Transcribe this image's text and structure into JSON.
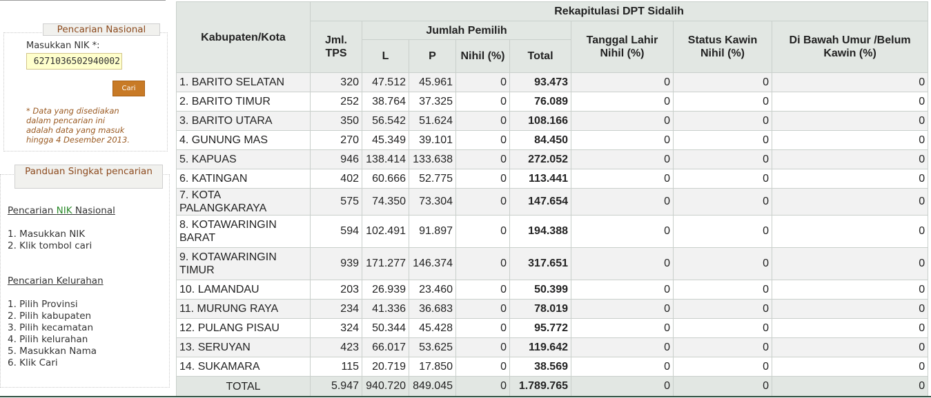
{
  "sidebar": {
    "search": {
      "legend": "Pencarian Nasional",
      "nik_label": "Masukkan NIK *:",
      "nik_value": "6271036502940002",
      "button": "Cari",
      "note": "* Data yang disediakan dalam pencarian ini adalah data yang masuk hingga 4 Desember 2013."
    },
    "guide": {
      "legend": "Panduan Singkat pencarian",
      "nik_heading": {
        "before": "Pencarian ",
        "highlight": "NIK",
        "after": " Nasional"
      },
      "nik_steps": [
        "1. Masukkan NIK",
        "2. Klik tombol cari"
      ],
      "kel_heading": "Pencarian Kelurahan",
      "kel_steps": [
        "1. Pilih Provinsi",
        "2. Pilih kabupaten",
        "3. Pilih kecamatan",
        "4. Pilih kelurahan",
        "5. Masukkan Nama",
        "6. Klik Cari"
      ]
    }
  },
  "table": {
    "title": "Rekapitulasi DPT Sidalih",
    "headers": {
      "kabupaten": "Kabupaten/Kota",
      "tps": "Jml. TPS",
      "jumlah_pemilih": "Jumlah Pemilih",
      "l": "L",
      "p": "P",
      "nihil": "Nihil (%)",
      "total": "Total",
      "tgl_lahir": "Tanggal Lahir Nihil (%)",
      "status_kawin": "Status Kawin Nihil (%)",
      "dibawah_umur": "Di Bawah Umur /Belum Kawin (%)"
    },
    "rows": [
      {
        "name": "1. BARITO SELATAN",
        "tps": "320",
        "l": "47.512",
        "p": "45.961",
        "nihil": "0",
        "total": "93.473",
        "tgl": "0",
        "kawin": "0",
        "umur": "0"
      },
      {
        "name": "2. BARITO TIMUR",
        "tps": "252",
        "l": "38.764",
        "p": "37.325",
        "nihil": "0",
        "total": "76.089",
        "tgl": "0",
        "kawin": "0",
        "umur": "0"
      },
      {
        "name": "3. BARITO UTARA",
        "tps": "350",
        "l": "56.542",
        "p": "51.624",
        "nihil": "0",
        "total": "108.166",
        "tgl": "0",
        "kawin": "0",
        "umur": "0"
      },
      {
        "name": "4. GUNUNG MAS",
        "tps": "270",
        "l": "45.349",
        "p": "39.101",
        "nihil": "0",
        "total": "84.450",
        "tgl": "0",
        "kawin": "0",
        "umur": "0"
      },
      {
        "name": "5. KAPUAS",
        "tps": "946",
        "l": "138.414",
        "p": "133.638",
        "nihil": "0",
        "total": "272.052",
        "tgl": "0",
        "kawin": "0",
        "umur": "0"
      },
      {
        "name": "6. KATINGAN",
        "tps": "402",
        "l": "60.666",
        "p": "52.775",
        "nihil": "0",
        "total": "113.441",
        "tgl": "0",
        "kawin": "0",
        "umur": "0"
      },
      {
        "name": "7. KOTA PALANGKARAYA",
        "tps": "575",
        "l": "74.350",
        "p": "73.304",
        "nihil": "0",
        "total": "147.654",
        "tgl": "0",
        "kawin": "0",
        "umur": "0"
      },
      {
        "name": "8. KOTAWARINGIN BARAT",
        "tps": "594",
        "l": "102.491",
        "p": "91.897",
        "nihil": "0",
        "total": "194.388",
        "tgl": "0",
        "kawin": "0",
        "umur": "0"
      },
      {
        "name": "9. KOTAWARINGIN TIMUR",
        "tps": "939",
        "l": "171.277",
        "p": "146.374",
        "nihil": "0",
        "total": "317.651",
        "tgl": "0",
        "kawin": "0",
        "umur": "0"
      },
      {
        "name": "10. LAMANDAU",
        "tps": "203",
        "l": "26.939",
        "p": "23.460",
        "nihil": "0",
        "total": "50.399",
        "tgl": "0",
        "kawin": "0",
        "umur": "0"
      },
      {
        "name": "11. MURUNG RAYA",
        "tps": "234",
        "l": "41.336",
        "p": "36.683",
        "nihil": "0",
        "total": "78.019",
        "tgl": "0",
        "kawin": "0",
        "umur": "0"
      },
      {
        "name": "12. PULANG PISAU",
        "tps": "324",
        "l": "50.344",
        "p": "45.428",
        "nihil": "0",
        "total": "95.772",
        "tgl": "0",
        "kawin": "0",
        "umur": "0"
      },
      {
        "name": "13. SERUYAN",
        "tps": "423",
        "l": "66.017",
        "p": "53.625",
        "nihil": "0",
        "total": "119.642",
        "tgl": "0",
        "kawin": "0",
        "umur": "0"
      },
      {
        "name": "14. SUKAMARA",
        "tps": "115",
        "l": "20.719",
        "p": "17.850",
        "nihil": "0",
        "total": "38.569",
        "tgl": "0",
        "kawin": "0",
        "umur": "0"
      }
    ],
    "total_row": {
      "name": "TOTAL",
      "tps": "5.947",
      "l": "940.720",
      "p": "849.045",
      "nihil": "0",
      "total": "1.789.765",
      "tgl": "0",
      "kawin": "0",
      "umur": "0"
    }
  }
}
